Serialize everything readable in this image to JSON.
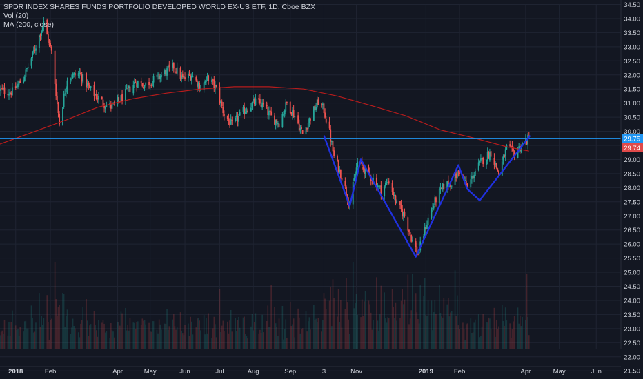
{
  "legend": {
    "title": "SPDR INDEX SHARES FUNDS PORTFOLIO DEVELOPED WORLD EX-US ETF, 1D, Cboe BZX",
    "vol": "Vol (20)",
    "ma": "MA (200, close)"
  },
  "colors": {
    "background": "#131722",
    "grid": "#1f2432",
    "axis_text": "#d1d4dc",
    "up": "#26a69a",
    "down": "#ef5350",
    "ma": "#b71c1c",
    "hline": "#2196f3",
    "pattern": "#2031e0",
    "last_price_tag": "#2196f3",
    "ma_price_tag": "#e04a4a"
  },
  "chart_data": {
    "type": "candlestick",
    "y_axis": {
      "ylim": [
        21.5,
        34.5
      ],
      "ticks": [
        "34.50",
        "34.00",
        "33.50",
        "33.00",
        "32.50",
        "32.00",
        "31.50",
        "31.00",
        "30.50",
        "30.00",
        "29.50",
        "29.00",
        "28.50",
        "28.00",
        "27.50",
        "27.00",
        "26.50",
        "26.00",
        "25.50",
        "25.00",
        "24.50",
        "24.00",
        "23.50",
        "23.00",
        "22.50",
        "22.00",
        "21.50"
      ]
    },
    "x_axis": {
      "xlim": [
        "2017-12-18",
        "2019-06-25"
      ],
      "ticks": [
        {
          "label": "2018",
          "date": "2018-01-01",
          "bold": true
        },
        {
          "label": "Feb",
          "date": "2018-02-01"
        },
        {
          "label": "Apr",
          "date": "2018-04-02"
        },
        {
          "label": "May",
          "date": "2018-05-01"
        },
        {
          "label": "Jun",
          "date": "2018-06-01"
        },
        {
          "label": "Jul",
          "date": "2018-07-02"
        },
        {
          "label": "Aug",
          "date": "2018-08-01"
        },
        {
          "label": "Sep",
          "date": "2018-09-03"
        },
        {
          "label": "3",
          "date": "2018-10-03"
        },
        {
          "label": "Nov",
          "date": "2018-11-01"
        },
        {
          "label": "2019",
          "date": "2019-01-02",
          "bold": true
        },
        {
          "label": "Feb",
          "date": "2019-02-01"
        },
        {
          "label": "Apr",
          "date": "2019-04-01"
        },
        {
          "label": "May",
          "date": "2019-05-01"
        },
        {
          "label": "Jun",
          "date": "2019-06-03"
        }
      ]
    },
    "price_path": [
      [
        "2017-12-18",
        31.45
      ],
      [
        "2017-12-29",
        31.4
      ],
      [
        "2018-01-08",
        31.9
      ],
      [
        "2018-01-16",
        32.7
      ],
      [
        "2018-01-26",
        33.85
      ],
      [
        "2018-02-02",
        32.8
      ],
      [
        "2018-02-09",
        30.3
      ],
      [
        "2018-02-16",
        31.9
      ],
      [
        "2018-02-27",
        32.05
      ],
      [
        "2018-03-08",
        31.5
      ],
      [
        "2018-03-20",
        31.0
      ],
      [
        "2018-03-28",
        30.85
      ],
      [
        "2018-04-06",
        31.2
      ],
      [
        "2018-04-18",
        31.75
      ],
      [
        "2018-04-26",
        31.65
      ],
      [
        "2018-05-08",
        31.9
      ],
      [
        "2018-05-22",
        32.3
      ],
      [
        "2018-05-30",
        31.85
      ],
      [
        "2018-06-07",
        32.0
      ],
      [
        "2018-06-15",
        31.55
      ],
      [
        "2018-06-22",
        31.9
      ],
      [
        "2018-06-29",
        31.5
      ],
      [
        "2018-07-06",
        30.6
      ],
      [
        "2018-07-13",
        30.2
      ],
      [
        "2018-07-20",
        30.55
      ],
      [
        "2018-07-27",
        30.85
      ],
      [
        "2018-08-03",
        31.05
      ],
      [
        "2018-08-10",
        30.9
      ],
      [
        "2018-08-17",
        30.5
      ],
      [
        "2018-08-24",
        30.3
      ],
      [
        "2018-08-31",
        31.0
      ],
      [
        "2018-09-07",
        30.55
      ],
      [
        "2018-09-14",
        29.9
      ],
      [
        "2018-09-21",
        30.5
      ],
      [
        "2018-09-28",
        31.05
      ],
      [
        "2018-10-03",
        30.75
      ],
      [
        "2018-10-08",
        29.95
      ],
      [
        "2018-10-12",
        29.1
      ],
      [
        "2018-10-19",
        28.4
      ],
      [
        "2018-10-26",
        27.4
      ],
      [
        "2018-11-02",
        28.9
      ],
      [
        "2018-11-09",
        28.6
      ],
      [
        "2018-11-16",
        28.3
      ],
      [
        "2018-11-23",
        27.9
      ],
      [
        "2018-11-30",
        28.25
      ],
      [
        "2018-12-07",
        27.4
      ],
      [
        "2018-12-14",
        27.0
      ],
      [
        "2018-12-21",
        26.1
      ],
      [
        "2018-12-26",
        25.65
      ],
      [
        "2019-01-04",
        26.9
      ],
      [
        "2019-01-11",
        27.6
      ],
      [
        "2019-01-18",
        28.05
      ],
      [
        "2019-01-25",
        28.2
      ],
      [
        "2019-02-01",
        28.6
      ],
      [
        "2019-02-08",
        28.0
      ],
      [
        "2019-02-15",
        28.6
      ],
      [
        "2019-02-22",
        29.0
      ],
      [
        "2019-03-01",
        29.25
      ],
      [
        "2019-03-08",
        28.5
      ],
      [
        "2019-03-15",
        29.4
      ],
      [
        "2019-03-22",
        29.2
      ],
      [
        "2019-03-29",
        29.55
      ],
      [
        "2019-04-04",
        29.75
      ]
    ],
    "volume": {
      "ylim": [
        0,
        3000000
      ]
    },
    "series": [
      {
        "indicator": "MA (200, close)",
        "points": [
          [
            "2017-12-18",
            29.55
          ],
          [
            "2018-01-15",
            29.95
          ],
          [
            "2018-02-15",
            30.4
          ],
          [
            "2018-03-15",
            30.85
          ],
          [
            "2018-04-15",
            31.15
          ],
          [
            "2018-05-15",
            31.35
          ],
          [
            "2018-06-15",
            31.5
          ],
          [
            "2018-07-15",
            31.58
          ],
          [
            "2018-08-15",
            31.58
          ],
          [
            "2018-09-15",
            31.5
          ],
          [
            "2018-10-15",
            31.25
          ],
          [
            "2018-11-15",
            30.9
          ],
          [
            "2018-12-15",
            30.55
          ],
          [
            "2019-01-15",
            30.05
          ],
          [
            "2019-02-15",
            29.75
          ],
          [
            "2019-03-15",
            29.45
          ],
          [
            "2019-04-04",
            29.3
          ]
        ]
      },
      {
        "indicator": "horizontal level",
        "value": 29.75
      },
      {
        "indicator": "drawn pattern",
        "points": [
          [
            "2018-10-03",
            29.85
          ],
          [
            "2018-10-26",
            27.35
          ],
          [
            "2018-11-05",
            29.0
          ],
          [
            "2018-12-24",
            25.55
          ],
          [
            "2019-01-31",
            28.8
          ],
          [
            "2019-02-08",
            27.95
          ],
          [
            "2019-02-19",
            27.55
          ],
          [
            "2019-04-05",
            29.85
          ]
        ]
      }
    ],
    "price_tags": [
      {
        "label": "29.75",
        "value": 29.75,
        "kind": "last"
      },
      {
        "label": "29.74",
        "value": 29.42,
        "kind": "ma"
      }
    ],
    "grid": true
  }
}
